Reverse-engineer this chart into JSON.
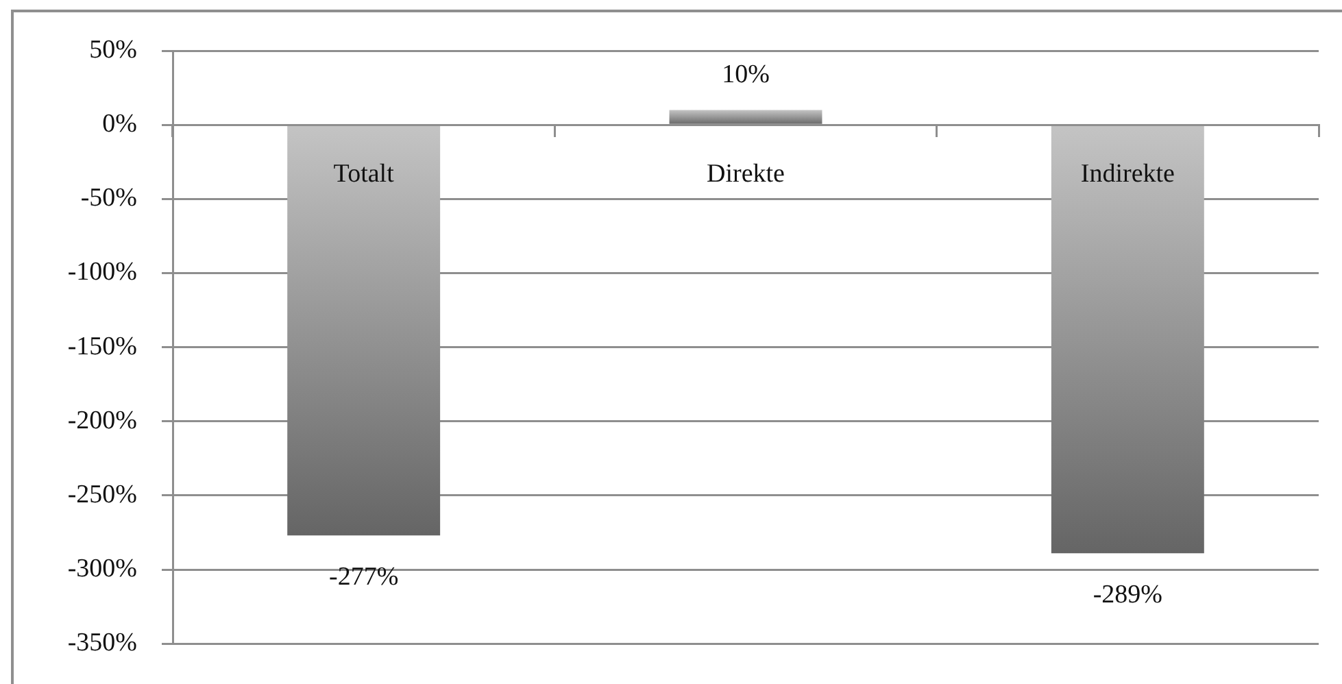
{
  "chart_data": {
    "type": "bar",
    "categories": [
      "Totalt",
      "Direkte",
      "Indirekte"
    ],
    "values": [
      -277,
      10,
      -289
    ],
    "value_labels": [
      "-277%",
      "10%",
      "-289%"
    ],
    "color": "#949494",
    "ylim": [
      -350,
      50
    ],
    "yticks": [
      {
        "value": -350,
        "label": "-350%"
      },
      {
        "value": -300,
        "label": "-300%"
      },
      {
        "value": -250,
        "label": "-250%"
      },
      {
        "value": -200,
        "label": "-200%"
      },
      {
        "value": -150,
        "label": "-150%"
      },
      {
        "value": -100,
        "label": "-100%"
      },
      {
        "value": -50,
        "label": "-50%"
      },
      {
        "value": 0,
        "label": "0%"
      },
      {
        "value": 50,
        "label": "50%"
      }
    ],
    "grid": "y"
  }
}
